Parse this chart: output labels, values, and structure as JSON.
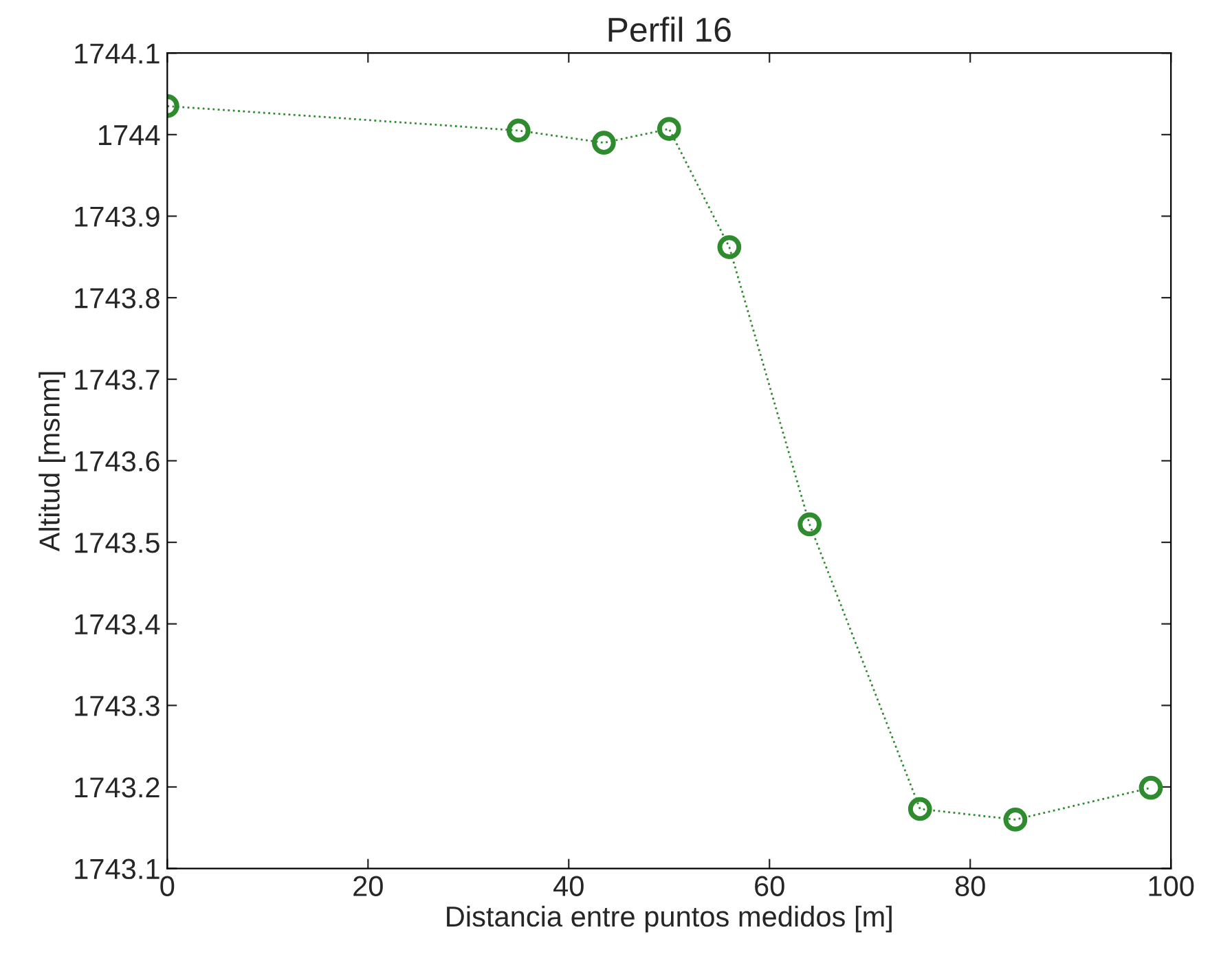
{
  "chart_data": {
    "type": "line",
    "title": "Perfil 16",
    "xlabel": "Distancia entre puntos medidos [m]",
    "ylabel": "Altitud [msnm]",
    "x": [
      0,
      35,
      43.5,
      50,
      56,
      64,
      75,
      84.5,
      98
    ],
    "series": [
      {
        "color": "#2e8b2e",
        "values": [
          1744.035,
          1744.005,
          1743.99,
          1744.007,
          1743.862,
          1743.522,
          1743.173,
          1743.16,
          1743.199
        ]
      }
    ],
    "xlim": [
      0,
      100
    ],
    "xticks": [
      0,
      20,
      40,
      60,
      80,
      100
    ],
    "ylim": [
      1743.1,
      1744.1
    ],
    "yticks": [
      {
        "value": 1743.1,
        "label": "1743.1"
      },
      {
        "value": 1743.2,
        "label": "1743.2"
      },
      {
        "value": 1743.3,
        "label": "1743.3"
      },
      {
        "value": 1743.4,
        "label": "1743.4"
      },
      {
        "value": 1743.5,
        "label": "1743.5"
      },
      {
        "value": 1743.6,
        "label": "1743.6"
      },
      {
        "value": 1743.7,
        "label": "1743.7"
      },
      {
        "value": 1743.8,
        "label": "1743.8"
      },
      {
        "value": 1743.9,
        "label": "1743.9"
      },
      1744,
      {
        "value": 1744.1,
        "label": "1744.1"
      }
    ],
    "marker": "circle",
    "line_style": "dotted",
    "grid": false,
    "legend": false
  }
}
